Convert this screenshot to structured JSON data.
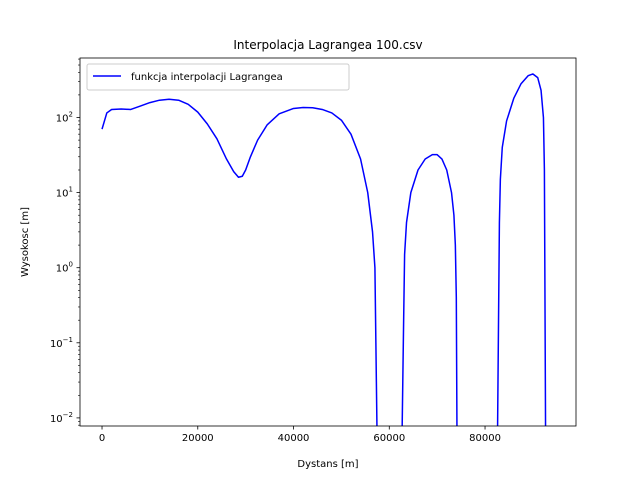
{
  "chart_data": {
    "type": "line",
    "title": "Interpolacja Lagrangea 100.csv",
    "xlabel": "Dystans [m]",
    "ylabel": "Wysokosc [m]",
    "xscale": "linear",
    "yscale": "log",
    "xlim": [
      -4600,
      99000
    ],
    "ylim": [
      0.0078,
      620
    ],
    "x_ticks": [
      0,
      20000,
      40000,
      60000,
      80000
    ],
    "x_tick_labels": [
      "0",
      "20000",
      "40000",
      "60000",
      "80000"
    ],
    "y_ticks": [
      0.01,
      0.1,
      1,
      10,
      100
    ],
    "y_tick_labels": [
      {
        "base": "10",
        "exp": "−2"
      },
      {
        "base": "10",
        "exp": "−1"
      },
      {
        "base": "10",
        "exp": "0"
      },
      {
        "base": "10",
        "exp": "1"
      },
      {
        "base": "10",
        "exp": "2"
      }
    ],
    "grid": false,
    "legend_position": "top-left",
    "series": [
      {
        "name": "funkcja interpolacji Lagrangea",
        "color": "#0000ff",
        "x": [
          0,
          1000,
          2000,
          4000,
          6000,
          8000,
          10000,
          12000,
          14000,
          16000,
          18000,
          20000,
          22000,
          24000,
          26000,
          27500,
          28500,
          29300,
          30000,
          31000,
          32500,
          34500,
          37000,
          40000,
          42000,
          44000,
          46000,
          48000,
          50000,
          52000,
          54000,
          55500,
          56500,
          57000,
          57200,
          57600,
          62500,
          63000,
          63200,
          63600,
          64500,
          66000,
          67500,
          69000,
          70000,
          71000,
          72000,
          73000,
          73500,
          73800,
          74000,
          74200,
          82500,
          83000,
          83200,
          83600,
          84500,
          86000,
          87500,
          89000,
          90000,
          91000,
          91700,
          92200,
          92400,
          92700
        ],
        "y": [
          70,
          115,
          128,
          130,
          128,
          142,
          158,
          170,
          175,
          170,
          150,
          118,
          82,
          52,
          28,
          19,
          16,
          16.5,
          20,
          30,
          50,
          80,
          112,
          132,
          136,
          135,
          128,
          115,
          92,
          60,
          28,
          10,
          3,
          1,
          0.1,
          0.001,
          0.001,
          0.2,
          1.5,
          4,
          10,
          20,
          28,
          32,
          32,
          28,
          20,
          10,
          5,
          2,
          0.4,
          0.001,
          0.001,
          4,
          15,
          40,
          90,
          180,
          280,
          360,
          380,
          340,
          230,
          100,
          20,
          0.001
        ]
      }
    ]
  }
}
